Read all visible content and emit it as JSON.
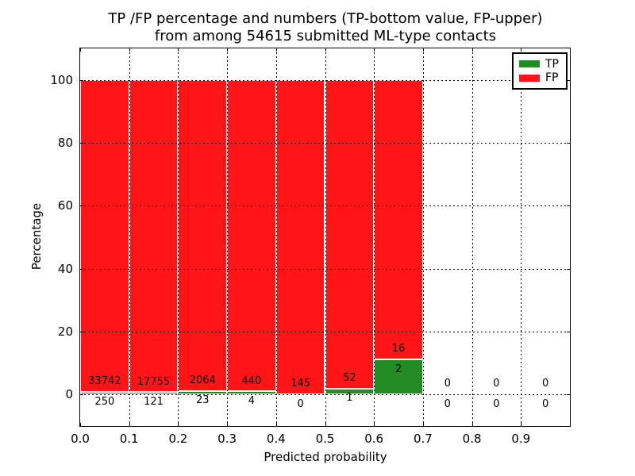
{
  "title": {
    "line1": "TP /FP percentage and numbers (TP-bottom value, FP-upper)",
    "line2": "from among 54615 submitted ML-type contacts"
  },
  "axes": {
    "xlabel": "Predicted probability",
    "ylabel": "Percentage",
    "x_ticks": [
      "0.0",
      "0.1",
      "0.2",
      "0.3",
      "0.4",
      "0.5",
      "0.6",
      "0.7",
      "0.8",
      "0.9"
    ],
    "y_ticks": [
      0,
      20,
      40,
      60,
      80,
      100
    ]
  },
  "legend": [
    {
      "label": "TP",
      "color": "#228b22"
    },
    {
      "label": "FP",
      "color": "#ff1515"
    }
  ],
  "chart_data": {
    "type": "bar",
    "stacked": true,
    "normalized": "each bin scaled to 100%",
    "title": "TP /FP percentage and numbers (TP-bottom value, FP-upper) from among 54615 submitted ML-type contacts",
    "xlabel": "Predicted probability",
    "ylabel": "Percentage",
    "total_contacts": 54615,
    "bin_width": 0.1,
    "bin_starts": [
      0.0,
      0.1,
      0.2,
      0.3,
      0.4,
      0.5,
      0.6,
      0.7,
      0.8,
      0.9
    ],
    "series": [
      {
        "name": "TP",
        "color": "#228b22",
        "counts": [
          250,
          121,
          23,
          4,
          0,
          1,
          2,
          0,
          0,
          0
        ]
      },
      {
        "name": "FP",
        "color": "#ff1515",
        "counts": [
          33742,
          17755,
          2064,
          440,
          145,
          52,
          16,
          0,
          0,
          0
        ]
      }
    ],
    "tp_percent_of_bin": [
      0.74,
      0.68,
      1.1,
      0.9,
      0.0,
      1.89,
      11.11,
      0,
      0,
      0
    ],
    "xlim": [
      0.0,
      1.0
    ],
    "ylim": [
      -10.3,
      110.2
    ],
    "grid": "dotted black, drawn above bars",
    "legend_position": "upper right",
    "bar_edge_color": "#ffffff"
  }
}
